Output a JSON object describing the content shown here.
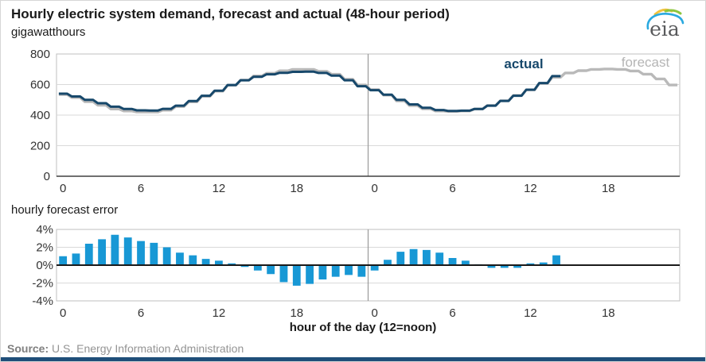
{
  "header": {
    "title": "Hourly electric system demand, forecast and actual (48-hour period)",
    "unit": "gigawatthours"
  },
  "logo": {
    "text": "eia"
  },
  "footer": {
    "source_label": "Source:",
    "source_text": "U.S. Energy Information Administration"
  },
  "colors": {
    "actual": "#17486b",
    "forecast": "#b9b9b9",
    "bars": "#1898d5",
    "grid": "#d9d9d9",
    "plot_border": "#bfbfbf",
    "axis": "#404040",
    "divider": "#9a9a9a",
    "zero_line": "#1a1a1a",
    "tick_text": "#333333",
    "footer_bar": "#1f4e79"
  },
  "chart_data": [
    {
      "type": "line",
      "title": "Hourly electric system demand, forecast and actual (48-hour period)",
      "ylabel": "gigawatthours",
      "ylim": [
        0,
        800
      ],
      "yticks": [
        0,
        200,
        400,
        600,
        800
      ],
      "gridlines": [
        200,
        400,
        600
      ],
      "x_is_hours_over_two_days": true,
      "xticks": [
        {
          "label": "0",
          "hour": 0
        },
        {
          "label": "6",
          "hour": 6
        },
        {
          "label": "12",
          "hour": 12
        },
        {
          "label": "18",
          "hour": 18
        },
        {
          "label": "0",
          "hour": 24
        },
        {
          "label": "6",
          "hour": 30
        },
        {
          "label": "12",
          "hour": 36
        },
        {
          "label": "18",
          "hour": 42
        }
      ],
      "day_divider_hour": 24,
      "series": [
        {
          "name": "forecast",
          "start_hour": 0,
          "values": [
            535,
            515,
            488,
            465,
            440,
            427,
            420,
            420,
            432,
            456,
            487,
            523,
            557,
            596,
            629,
            656,
            674,
            690,
            699,
            699,
            687,
            667,
            635,
            597,
            566,
            531,
            493,
            462,
            441,
            427,
            424,
            427,
            440,
            463,
            494,
            529,
            565,
            608,
            648,
            676,
            691,
            699,
            702,
            699,
            689,
            668,
            637,
            597
          ]
        },
        {
          "name": "actual",
          "start_hour": 0,
          "values": [
            540,
            522,
            500,
            478,
            455,
            440,
            431,
            430,
            441,
            462,
            492,
            527,
            560,
            597,
            628,
            651,
            667,
            677,
            683,
            684,
            676,
            658,
            628,
            589,
            563,
            534,
            500,
            470,
            448,
            433,
            427,
            429,
            440,
            462,
            493,
            527,
            566,
            610,
            655
          ]
        }
      ]
    },
    {
      "type": "bar",
      "title": "hourly forecast error",
      "xlabel": "hour of the day  (12=noon)",
      "ylim": [
        -4,
        4
      ],
      "yticks": [
        "4%",
        "2%",
        "0%",
        "-2%",
        "-4%"
      ],
      "ytick_values": [
        4,
        2,
        0,
        -2,
        -4
      ],
      "gridlines": [
        2,
        -2
      ],
      "xticks": [
        {
          "label": "0",
          "hour": 0
        },
        {
          "label": "6",
          "hour": 6
        },
        {
          "label": "12",
          "hour": 12
        },
        {
          "label": "18",
          "hour": 18
        },
        {
          "label": "0",
          "hour": 24
        },
        {
          "label": "6",
          "hour": 30
        },
        {
          "label": "12",
          "hour": 36
        },
        {
          "label": "18",
          "hour": 42
        }
      ],
      "day_divider_hour": 24,
      "start_hour": 0,
      "values_pct": [
        1.0,
        1.3,
        2.4,
        2.9,
        3.4,
        3.1,
        2.7,
        2.5,
        2.0,
        1.4,
        1.1,
        0.7,
        0.5,
        0.2,
        -0.2,
        -0.6,
        -1.0,
        -1.9,
        -2.3,
        -2.1,
        -1.6,
        -1.3,
        -1.1,
        -1.3,
        -0.6,
        0.6,
        1.5,
        1.8,
        1.7,
        1.4,
        0.8,
        0.5,
        0.1,
        -0.3,
        -0.3,
        -0.3,
        0.2,
        0.3,
        1.1
      ]
    }
  ]
}
